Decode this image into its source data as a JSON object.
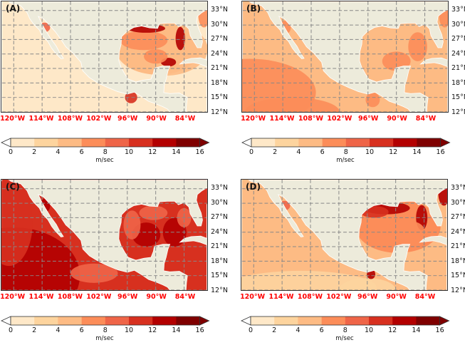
{
  "panels": [
    {
      "label": "(A)",
      "ocean_level": 0,
      "gulf_level": 2
    },
    {
      "label": "(B)",
      "ocean_level": 2,
      "gulf_level": 2
    },
    {
      "label": "(C)",
      "ocean_level": 5,
      "gulf_level": 5
    },
    {
      "label": "(D)",
      "ocean_level": 2,
      "gulf_level": 3
    }
  ],
  "lat_ticks": [
    "33°N",
    "30°N",
    "27°N",
    "24°N",
    "21°N",
    "18°N",
    "15°N",
    "12°N"
  ],
  "lat_values": [
    33,
    30,
    27,
    24,
    21,
    18,
    15,
    12
  ],
  "lon_ticks": [
    "120°W",
    "114°W",
    "108°W",
    "102°W",
    "96°W",
    "90°W",
    "84°W"
  ],
  "lon_values": [
    -120,
    -114,
    -108,
    -102,
    -96,
    -90,
    -84
  ],
  "colorbar": {
    "ticks": [
      "0",
      "2",
      "4",
      "6",
      "8",
      "10",
      "12",
      "14",
      "16"
    ],
    "unit": "m/sec",
    "colors": [
      "#fee8c8",
      "#fdd49e",
      "#fdbb84",
      "#fc8d59",
      "#ef6548",
      "#d7301f",
      "#b30000",
      "#7f0000"
    ],
    "under_color": "#ffffff",
    "over_color": "#7f0000"
  },
  "land_color": "#edebdb",
  "grid_color": "#888888"
}
